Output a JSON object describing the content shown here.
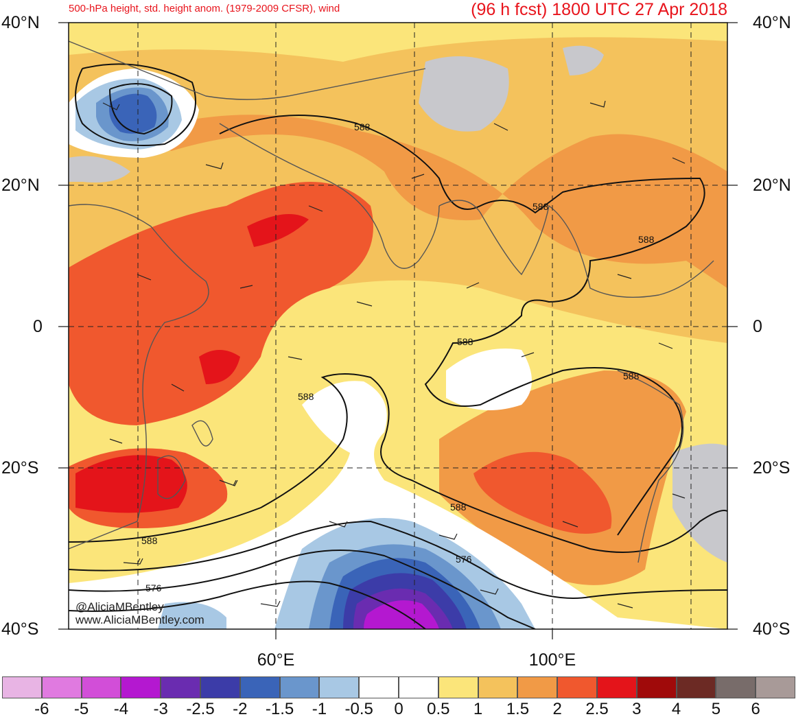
{
  "header": {
    "title_left": "500-hPa height, std. height anom. (1979-2009 CFSR), wind",
    "title_right": "(96 h fcst) 1800 UTC 27 Apr 2018"
  },
  "axes": {
    "lat_labels": [
      "40°N",
      "20°N",
      "0",
      "20°S",
      "40°S"
    ],
    "lon_labels": [
      "60°E",
      "100°E"
    ]
  },
  "contour_labels": [
    "588",
    "588",
    "588",
    "588",
    "588",
    "588",
    "588",
    "576",
    "576",
    "588"
  ],
  "credits": {
    "handle": "@AliciaMBentley",
    "site": "www.AliciaMBentley.com"
  },
  "colorbar": {
    "labels": [
      "-6",
      "-5",
      "-4",
      "-3",
      "-2.5",
      "-2",
      "-1.5",
      "-1",
      "-0.5",
      "0",
      "0.5",
      "1",
      "1.5",
      "2",
      "2.5",
      "3",
      "4",
      "5",
      "6"
    ],
    "colors": [
      "#e8b4e4",
      "#e07ae0",
      "#d24ed8",
      "#b418d0",
      "#6a2cb0",
      "#3c3ca8",
      "#3a64b8",
      "#6a96cc",
      "#a8c8e4",
      "#ffffff",
      "#ffffff",
      "#fbe57a",
      "#f4c25c",
      "#f19a46",
      "#f0582e",
      "#e4141a",
      "#a00a0a",
      "#6c2a24",
      "#786c6a",
      "#a89a98"
    ]
  },
  "colors": {
    "title": "#e8141c",
    "warm_1": "#fbe57a",
    "warm_2": "#f4c25c",
    "warm_3": "#f19a46",
    "warm_4": "#f0582e",
    "warm_5": "#e4141a",
    "cool_1": "#a8c8e4",
    "cool_2": "#6a96cc",
    "cool_3": "#3a64b8",
    "cool_4": "#3c3ca8",
    "cool_5": "#6a2cb0",
    "cool_6": "#b418d0",
    "gray": "#c8c8cc"
  }
}
